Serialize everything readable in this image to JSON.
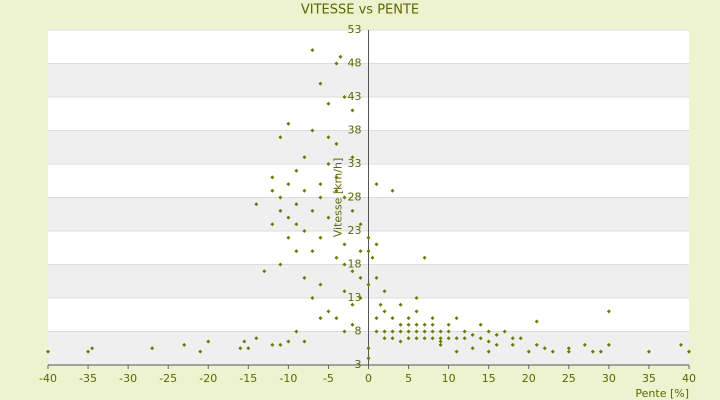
{
  "chart_data": {
    "type": "scatter",
    "title": "VITESSE vs PENTE",
    "x_label": "Pente [%]",
    "y_label": "Vitesse [km/h]",
    "color": "#6b7a00",
    "grid": true,
    "xlim": [
      -40,
      40
    ],
    "xticks": [
      -40,
      -35,
      -30,
      -25,
      -20,
      -15,
      -10,
      -5,
      0,
      5,
      10,
      15,
      20,
      25,
      30,
      35,
      40
    ],
    "ylim": [
      3,
      53
    ],
    "yticks": [
      3,
      8,
      13,
      18,
      23,
      28,
      33,
      38,
      43,
      48,
      53
    ],
    "x": [
      -40,
      -35,
      -34.5,
      -27,
      -23,
      -21,
      -20,
      -16,
      -15.5,
      -15,
      -12,
      -11,
      -10,
      -8,
      -7,
      -4,
      -3.5,
      -6,
      -3,
      -2,
      -5,
      -10,
      -11,
      -7,
      -5,
      -4,
      -2,
      -8,
      -9,
      -12,
      -10,
      -6,
      -4,
      -3,
      -11,
      -14,
      -9,
      -7,
      -5,
      -2,
      -1,
      -12,
      -8,
      -10,
      -6,
      -3,
      -9,
      -4,
      -1,
      -13,
      -11,
      -8,
      -6,
      -3,
      -2,
      -5,
      -7,
      -1,
      -4,
      -6,
      -14,
      -9,
      -3,
      -2,
      -10,
      -11,
      -12,
      -8,
      -6,
      -5,
      -4,
      -9,
      -7,
      -2,
      -3,
      -1,
      0,
      0,
      0,
      0,
      0,
      1,
      1,
      0.5,
      1,
      2,
      1.5,
      1,
      3,
      2,
      3,
      4,
      5,
      6,
      7,
      3,
      4,
      4,
      5,
      5,
      6,
      6,
      6,
      7,
      7,
      7,
      8,
      8,
      8,
      9,
      9,
      9,
      10,
      10,
      10,
      11,
      11,
      12,
      12,
      13,
      14,
      15,
      15,
      16,
      14,
      17,
      18,
      19,
      21,
      21,
      30,
      2,
      3,
      1,
      2,
      4,
      5,
      8,
      6,
      15,
      18,
      20,
      23,
      25,
      27,
      28,
      29,
      30,
      35,
      39,
      40,
      13,
      11,
      9,
      16,
      22,
      25
    ],
    "y": [
      5,
      5,
      5.5,
      5.5,
      6,
      5,
      6.5,
      5.5,
      6.5,
      5.5,
      6,
      6,
      6.5,
      6.5,
      50,
      48,
      49,
      45,
      43,
      41,
      42,
      39,
      37,
      38,
      37,
      36,
      34,
      34,
      32,
      31,
      30,
      30,
      29,
      28,
      28,
      27,
      27,
      26,
      25,
      26,
      24,
      24,
      23,
      22,
      22,
      21,
      20,
      19,
      20,
      17,
      18,
      16,
      15,
      14,
      12,
      11,
      13,
      13,
      10,
      10,
      7,
      8,
      8,
      9,
      25,
      26,
      29,
      29,
      28,
      33,
      31,
      24,
      20,
      17,
      18,
      16,
      15,
      20,
      22,
      5.5,
      4,
      30,
      21,
      19,
      16,
      14,
      12,
      10,
      29,
      11,
      10,
      12,
      9,
      13,
      19,
      8,
      9,
      8,
      8,
      7,
      9,
      8,
      7,
      8,
      9,
      7,
      8,
      9,
      7,
      8,
      7,
      6.5,
      7,
      8,
      9,
      7,
      10,
      8,
      7,
      7.5,
      7,
      6.5,
      8,
      7.5,
      9,
      8,
      7,
      7,
      9.5,
      6,
      11,
      8,
      7,
      8,
      7,
      6.5,
      10,
      10,
      11,
      5,
      6,
      5,
      5,
      5,
      6,
      5,
      5,
      6,
      5,
      6,
      5,
      5.5,
      5,
      6,
      6,
      5.5,
      5.5
    ]
  }
}
